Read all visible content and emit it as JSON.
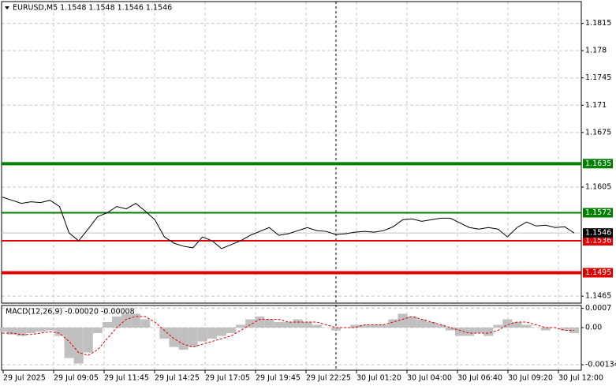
{
  "chart_data": [
    {
      "type": "line",
      "title": "EURUSD,M5  1.1548 1.1548 1.1546 1.1546",
      "color": "#000000",
      "ylim": [
        1.1456,
        1.1843
      ],
      "yticks": [
        1.1465,
        1.1605,
        1.1675,
        1.171,
        1.1745,
        1.178,
        1.1815
      ],
      "values": [
        1.1592,
        1.1588,
        1.1584,
        1.1586,
        1.1585,
        1.1588,
        1.158,
        1.1546,
        1.1536,
        1.1551,
        1.1567,
        1.1572,
        1.158,
        1.1577,
        1.1584,
        1.1574,
        1.1563,
        1.1541,
        1.1533,
        1.1529,
        1.1527,
        1.1541,
        1.1536,
        1.1526,
        1.1531,
        1.1536,
        1.1543,
        1.1548,
        1.1553,
        1.1543,
        1.1545,
        1.1549,
        1.1553,
        1.1549,
        1.1548,
        1.1544,
        1.1545,
        1.1547,
        1.1548,
        1.1547,
        1.1549,
        1.1554,
        1.1563,
        1.1564,
        1.1561,
        1.1563,
        1.1565,
        1.1565,
        1.1559,
        1.1553,
        1.1551,
        1.1553,
        1.1551,
        1.1541,
        1.1553,
        1.156,
        1.1555,
        1.1556,
        1.1553,
        1.1554,
        1.1546
      ],
      "levels": [
        {
          "value": 1.1635,
          "color": "#008000",
          "width": 4
        },
        {
          "value": 1.1572,
          "color": "#008000",
          "width": 2
        },
        {
          "value": 1.1536,
          "color": "#e00000",
          "width": 2
        },
        {
          "value": 1.1495,
          "color": "#e00000",
          "width": 4
        }
      ],
      "last": 1.1546
    },
    {
      "type": "macd",
      "title": "MACD(12,26,9) -0.00020 -0.00008",
      "color": "#c0c0c0",
      "signal_color": "#e00000",
      "ylim": [
        -0.00151,
        0.00077
      ],
      "yticks": [
        -0.00134,
        {
          "value": 0,
          "label": "0.00"
        },
        0.0007
      ],
      "values": [
        -0.00015,
        -0.00025,
        -0.0003,
        -0.0002,
        -0.00015,
        -0.0001,
        -0.0003,
        -0.0011,
        -0.0013,
        -0.0009,
        -0.0002,
        0.0002,
        0.0004,
        0.0005,
        0.0005,
        0.0003,
        0.0,
        -0.0004,
        -0.0007,
        -0.0008,
        -0.0007,
        -0.0005,
        -0.0004,
        -0.0003,
        -0.0002,
        0.0001,
        0.0003,
        0.0004,
        0.0003,
        0.0002,
        0.0002,
        0.0003,
        0.0002,
        0.0001,
        0.0,
        -0.0001,
        0.0,
        0.0001,
        0.0001,
        0.0001,
        0.0001,
        0.0003,
        0.0005,
        0.0004,
        0.0003,
        0.0002,
        0.0001,
        -0.0001,
        -0.0003,
        -0.0003,
        -0.0002,
        -0.0003,
        0.0001,
        0.0003,
        0.0002,
        0.0001,
        0.0,
        -0.0001,
        0.0,
        -0.0001,
        -0.0002
      ],
      "signal": [
        -0.0002,
        -0.0002,
        -0.00025,
        -0.00025,
        -0.0002,
        -0.00015,
        -0.0002,
        -0.0005,
        -0.0009,
        -0.001,
        -0.0008,
        -0.0004,
        0.0,
        0.0003,
        0.0004,
        0.0004,
        0.0002,
        -0.0001,
        -0.0004,
        -0.0006,
        -0.0007,
        -0.0006,
        -0.0005,
        -0.0004,
        -0.0003,
        -0.0001,
        0.0001,
        0.0003,
        0.0003,
        0.0003,
        0.0002,
        0.0002,
        0.0002,
        0.0002,
        0.0001,
        0.0,
        0.0,
        0.0,
        0.0001,
        0.0001,
        0.0001,
        0.0002,
        0.0003,
        0.0004,
        0.0003,
        0.0002,
        0.0001,
        0.0,
        -0.0001,
        -0.0002,
        -0.0002,
        -0.0002,
        -0.0001,
        0.0001,
        0.0002,
        0.0002,
        0.0001,
        0.0,
        0.0,
        -0.0001,
        -0.0001
      ],
      "x_labels": [
        "29 Jul 2025",
        "29 Jul 09:05",
        "29 Jul 11:45",
        "29 Jul 14:25",
        "29 Jul 17:05",
        "29 Jul 19:45",
        "29 Jul 22:25",
        "30 Jul 01:20",
        "30 Jul 04:00",
        "30 Jul 06:40",
        "30 Jul 09:20",
        "30 Jul 12:00"
      ]
    }
  ]
}
